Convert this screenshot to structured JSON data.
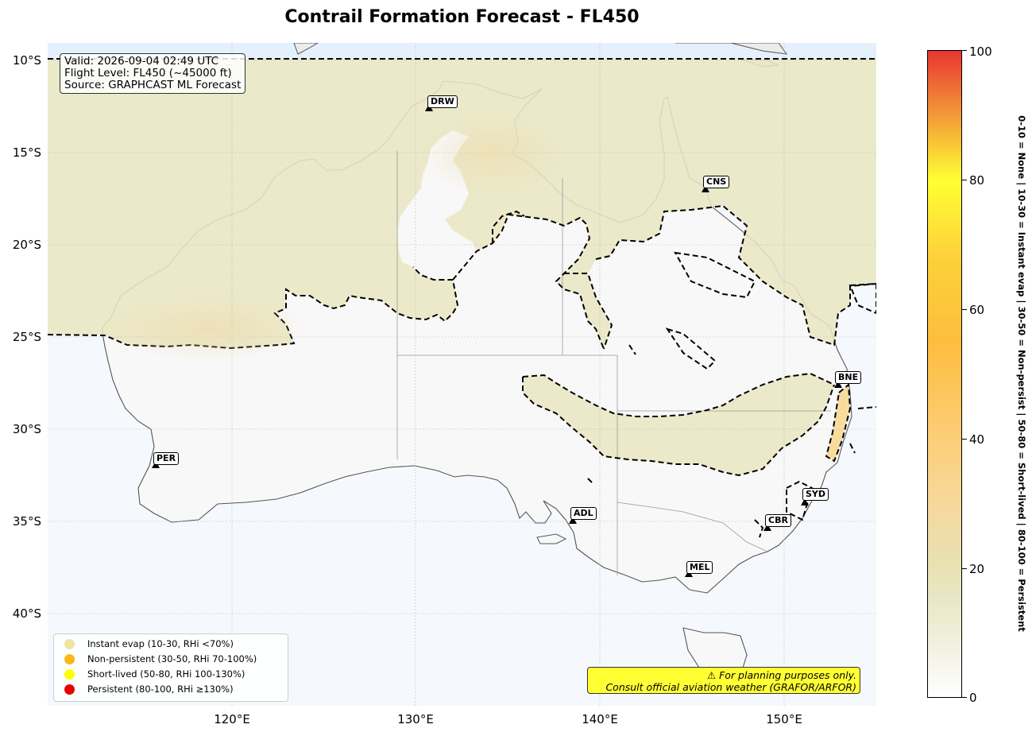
{
  "title": "Contrail Formation Forecast - FL450",
  "info_box": {
    "lines": [
      "Valid: 2026-09-04 02:49 UTC",
      "Flight Level: FL450 (~45000 ft)",
      "Source: GRAPHCAST ML Forecast"
    ]
  },
  "lat_labels": [
    "10°S",
    "15°S",
    "20°S",
    "25°S",
    "30°S",
    "35°S",
    "40°S"
  ],
  "lon_labels": [
    "120°E",
    "130°E",
    "140°E",
    "150°E"
  ],
  "cities": [
    {
      "code": "DRW",
      "lon": 130.8,
      "lat": -12.5
    },
    {
      "code": "CNS",
      "lon": 145.7,
      "lat": -16.9
    },
    {
      "code": "BNE",
      "lon": 153.0,
      "lat": -27.5
    },
    {
      "code": "PER",
      "lon": 115.9,
      "lat": -31.9
    },
    {
      "code": "SYD",
      "lon": 151.2,
      "lat": -33.9
    },
    {
      "code": "ADL",
      "lon": 138.6,
      "lat": -34.9
    },
    {
      "code": "CBR",
      "lon": 149.1,
      "lat": -35.3
    },
    {
      "code": "MEL",
      "lon": 144.9,
      "lat": -37.8
    }
  ],
  "legend": [
    {
      "label": "Instant evap (10-30, RHi <70%)",
      "color": "#f0e2a4"
    },
    {
      "label": "Non-persistent (30-50, RHi 70-100%)",
      "color": "#fbb617"
    },
    {
      "label": "Short-lived (50-80, RHi 100-130%)",
      "color": "#ffff00"
    },
    {
      "label": "Persistent (80-100, RHi ≥130%)",
      "color": "#e60000"
    }
  ],
  "disclaimer": {
    "line1": "⚠ For planning purposes only.",
    "line2": "Consult official aviation weather (GRAFOR/ARFOR)"
  },
  "colorbar": {
    "ticks": [
      "0",
      "20",
      "40",
      "60",
      "80",
      "100"
    ],
    "label": "0-10 = None  |  10-30 = Instant evap  |  30-50 = Non-persist  |  50-80 = Short-lived  |  80-100 = Persistent"
  },
  "map_extent": {
    "lon_min": 110,
    "lon_max": 155,
    "lat_min": -45,
    "lat_max": -9
  },
  "colors": {
    "ocean": "#f4f8fc",
    "land_low": "#f8f8f8",
    "high_zone": "#e8e6c2",
    "dash": "#000000",
    "coast": "#555555"
  }
}
